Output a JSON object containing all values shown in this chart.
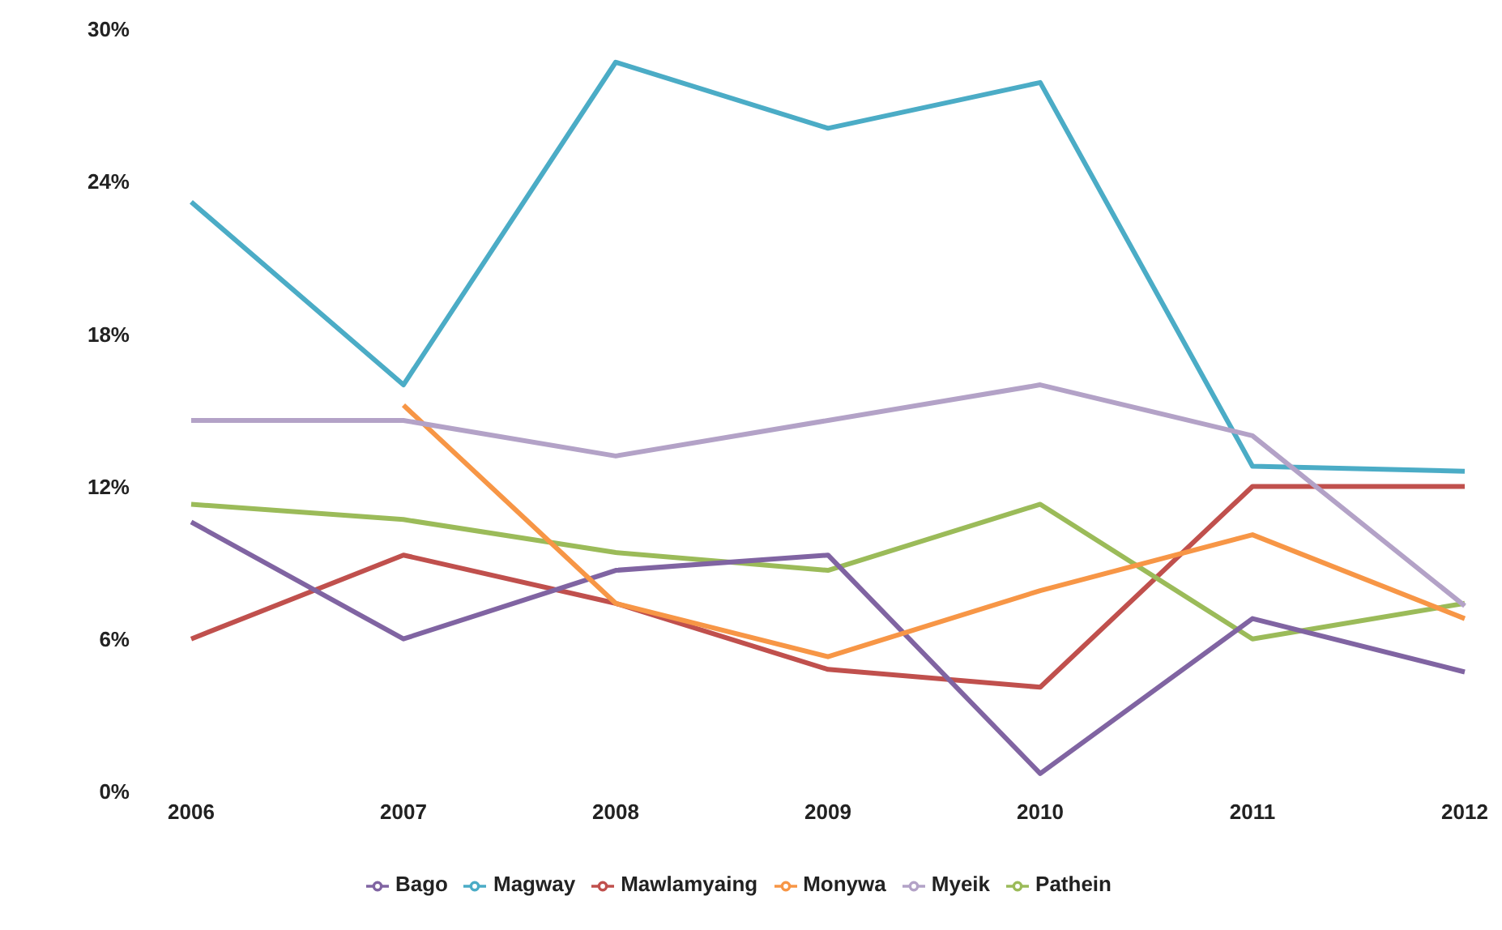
{
  "chart_data": {
    "type": "line",
    "categories": [
      "2006",
      "2007",
      "2008",
      "2009",
      "2010",
      "2011",
      "2012"
    ],
    "series": [
      {
        "name": "Mawlamyaing",
        "color": "#c0504d",
        "values": [
          6.0,
          9.3,
          7.4,
          4.8,
          4.1,
          12.0,
          12.0
        ]
      },
      {
        "name": "Pathein",
        "color": "#9bbb59",
        "values": [
          11.3,
          10.7,
          9.4,
          8.7,
          11.3,
          6.0,
          7.4
        ]
      },
      {
        "name": "Bago",
        "color": "#8064a2",
        "values": [
          10.6,
          6.0,
          8.7,
          9.3,
          0.7,
          6.8,
          4.7
        ]
      },
      {
        "name": "Magway",
        "color": "#4bacc6",
        "values": [
          23.2,
          16.0,
          28.7,
          26.1,
          27.9,
          12.8,
          12.6
        ]
      },
      {
        "name": "Monywa",
        "color": "#f79646",
        "values": [
          null,
          15.2,
          7.4,
          5.3,
          7.9,
          10.1,
          6.8
        ]
      },
      {
        "name": "Myeik",
        "color": "#b3a2c7",
        "values": [
          14.6,
          14.6,
          13.2,
          14.6,
          16.0,
          14.0,
          7.3
        ]
      }
    ],
    "ylim": [
      0,
      30
    ],
    "yticks": [
      {
        "value": 0,
        "label": "0%"
      },
      {
        "value": 6,
        "label": "6%"
      },
      {
        "value": 12,
        "label": "12%"
      },
      {
        "value": 18,
        "label": "18%"
      },
      {
        "value": 24,
        "label": "24%"
      },
      {
        "value": 30,
        "label": "30%"
      }
    ],
    "grid": false,
    "legend": "bottom",
    "marker": "none",
    "line_style": "solid"
  }
}
